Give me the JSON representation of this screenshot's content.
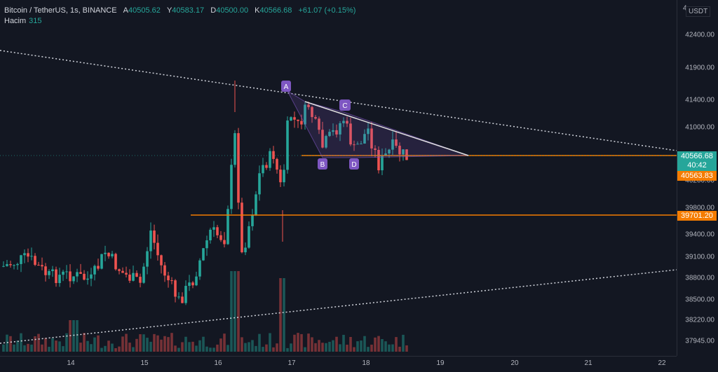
{
  "header": {
    "symbol": "Bitcoin / TetherUS, 1s, BINANCE",
    "open_label": "A",
    "open": "40505.62",
    "high_label": "Y",
    "high": "40583.17",
    "low_label": "D",
    "low": "40500.00",
    "close_label": "K",
    "close": "40566.68",
    "change": "+61.07 (+0.15%)"
  },
  "volume": {
    "label": "Hacim",
    "value": "315"
  },
  "currency": "USDT",
  "axis_top_partial": "4",
  "y_ticks": [
    "42400.00",
    "41900.00",
    "41400.00",
    "41000.00",
    "40200.00",
    "39800.00",
    "39400.00",
    "39100.00",
    "38800.00",
    "38500.00",
    "38220.00",
    "37945.00"
  ],
  "price_labels": {
    "current": "40566.68",
    "countdown": "40:42",
    "level_upper": "40563.83",
    "level_lower": "39701.20"
  },
  "x_ticks": [
    "14",
    "15",
    "16",
    "17",
    "18",
    "19",
    "20",
    "21",
    "22"
  ],
  "pattern_labels": [
    "A",
    "B",
    "C",
    "D"
  ],
  "colors": {
    "up": "#26a69a",
    "down": "#ef5350",
    "orange": "#f57c00",
    "bg": "#131722",
    "pattern": "#7e57c2"
  }
}
